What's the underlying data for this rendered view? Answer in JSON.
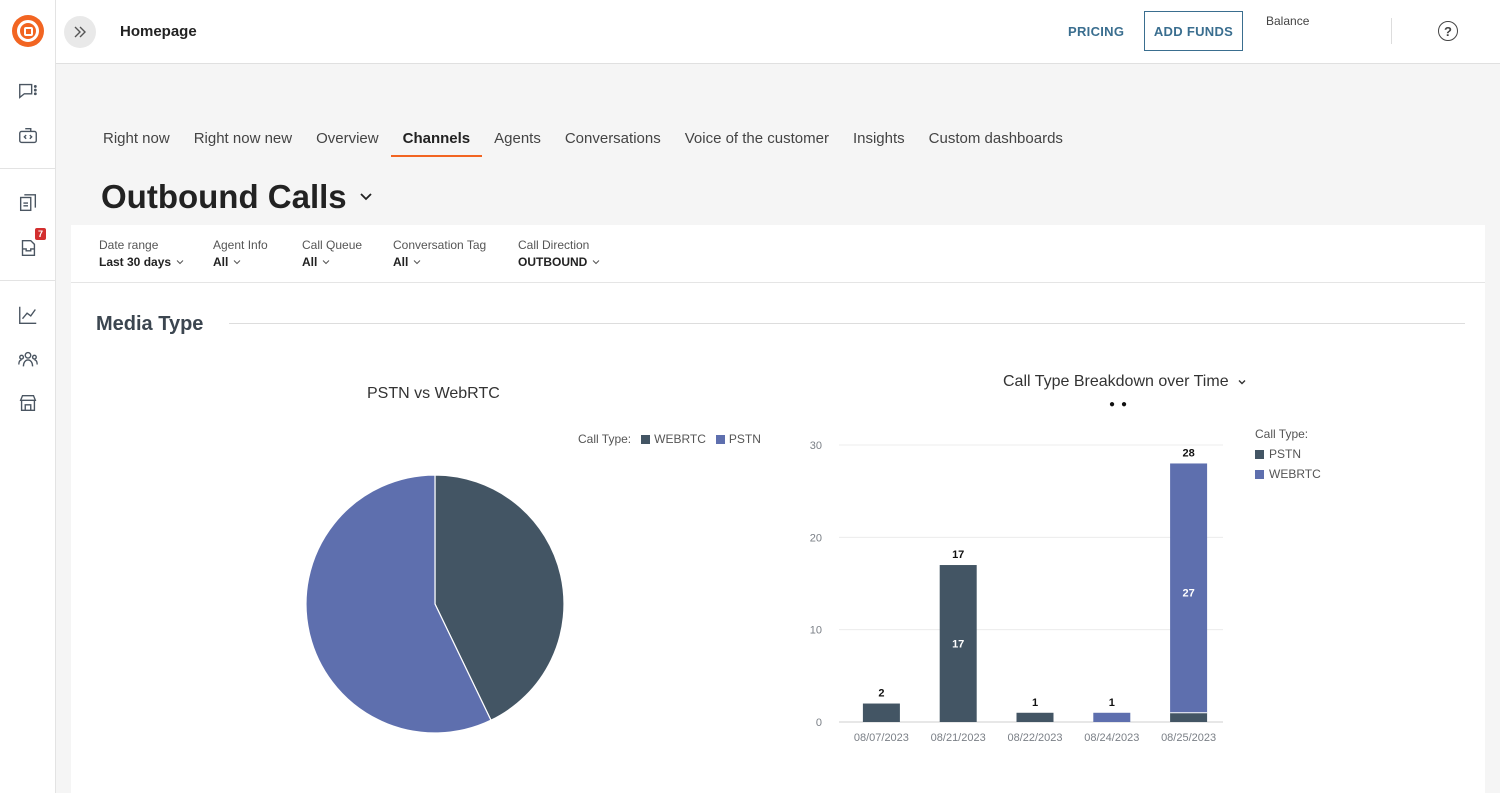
{
  "topbar": {
    "crumb": "Homepage",
    "pricing": "PRICING",
    "add_funds": "ADD FUNDS",
    "balance": "Balance",
    "help": "?"
  },
  "sidebar": {
    "badge": "7",
    "icons": [
      "chat-icon",
      "code-box-icon",
      "docs-icon",
      "inbox-icon",
      "analytics-icon",
      "team-icon",
      "store-icon"
    ]
  },
  "tabs": [
    "Right now",
    "Right now new",
    "Overview",
    "Channels",
    "Agents",
    "Conversations",
    "Voice of the customer",
    "Insights",
    "Custom dashboards"
  ],
  "active_tab": "Channels",
  "page_title": "Outbound Calls",
  "filters": [
    {
      "label": "Date range",
      "value": "Last 30 days"
    },
    {
      "label": "Agent Info",
      "value": "All"
    },
    {
      "label": "Call Queue",
      "value": "All"
    },
    {
      "label": "Conversation Tag",
      "value": "All"
    },
    {
      "label": "Call Direction",
      "value": "OUTBOUND"
    }
  ],
  "section_title": "Media Type",
  "colors": {
    "webrtc": "#5e6fae",
    "pstn": "#435564",
    "accent": "#f26522",
    "link": "#3a6e8f"
  },
  "chart_data": [
    {
      "type": "pie",
      "title": "PSTN vs WebRTC",
      "legend_title": "Call Type:",
      "legend_entries": [
        "WEBRTC",
        "PSTN"
      ],
      "slices": [
        {
          "name": "PSTN",
          "value": 21
        },
        {
          "name": "WEBRTC",
          "value": 28
        }
      ]
    },
    {
      "type": "bar",
      "title": "Call Type Breakdown over Time",
      "legend_title": "Call Type:",
      "legend_entries": [
        "PSTN",
        "WEBRTC"
      ],
      "categories": [
        "08/07/2023",
        "08/21/2023",
        "08/22/2023",
        "08/24/2023",
        "08/25/2023"
      ],
      "series": [
        {
          "name": "PSTN",
          "values": [
            2,
            17,
            1,
            0,
            1
          ]
        },
        {
          "name": "WEBRTC",
          "values": [
            0,
            0,
            0,
            1,
            27
          ]
        }
      ],
      "totals": [
        2,
        17,
        1,
        1,
        28
      ],
      "inner_labels": [
        null,
        17,
        null,
        null,
        27
      ],
      "yticks": [
        0,
        10,
        20,
        30
      ],
      "ylim": [
        0,
        30
      ]
    }
  ]
}
